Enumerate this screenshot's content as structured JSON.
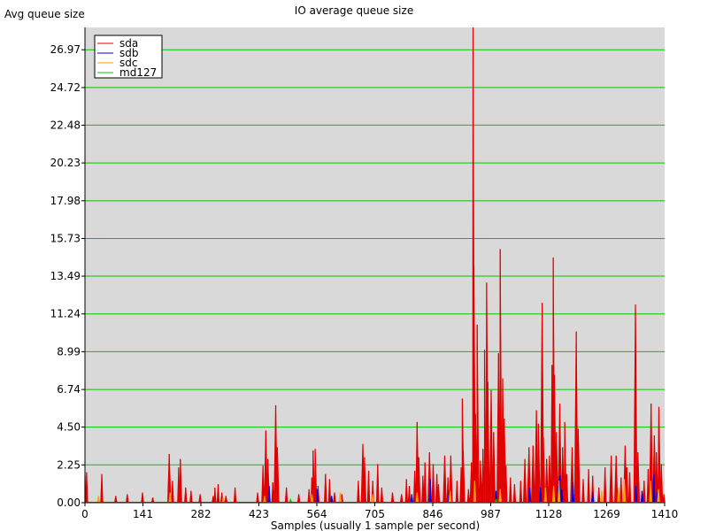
{
  "chart_data": {
    "type": "line",
    "title": "IO average queue size",
    "ylabel": "Avg queue size",
    "xlabel": "Samples (usually 1 sample per second)",
    "xlim": [
      0,
      1410
    ],
    "ylim": [
      0,
      28.3
    ],
    "x_ticks": [
      "0",
      "141",
      "282",
      "423",
      "564",
      "705",
      "846",
      "987",
      "1128",
      "1269",
      "1410"
    ],
    "y_ticks": [
      "0.00",
      "2.25",
      "4.50",
      "6.74",
      "8.99",
      "11.24",
      "13.49",
      "15.73",
      "17.98",
      "20.23",
      "22.48",
      "24.72",
      "26.97"
    ],
    "grid": "horizontal",
    "grid_color": "#00c800",
    "plot_background": "#d9d9d9",
    "legend_position": "top-left",
    "series": [
      {
        "name": "sda",
        "color": "#e00000",
        "spikes": [
          [
            0,
            1.6
          ],
          [
            4,
            1.8
          ],
          [
            41,
            1.7
          ],
          [
            75,
            0.4
          ],
          [
            103,
            0.5
          ],
          [
            140,
            0.6
          ],
          [
            165,
            0.3
          ],
          [
            205,
            2.9
          ],
          [
            213,
            1.3
          ],
          [
            228,
            2.1
          ],
          [
            232,
            2.6
          ],
          [
            245,
            0.9
          ],
          [
            258,
            0.7
          ],
          [
            280,
            0.5
          ],
          [
            312,
            0.4
          ],
          [
            316,
            0.9
          ],
          [
            324,
            1.1
          ],
          [
            333,
            0.6
          ],
          [
            343,
            0.4
          ],
          [
            365,
            0.9
          ],
          [
            420,
            0.6
          ],
          [
            433,
            2.2
          ],
          [
            440,
            4.3
          ],
          [
            445,
            2.6
          ],
          [
            457,
            1.2
          ],
          [
            464,
            5.8
          ],
          [
            468,
            3.3
          ],
          [
            490,
            0.9
          ],
          [
            520,
            0.5
          ],
          [
            545,
            0.8
          ],
          [
            552,
            1.5
          ],
          [
            555,
            3.1
          ],
          [
            560,
            3.2
          ],
          [
            567,
            1.0
          ],
          [
            585,
            1.7
          ],
          [
            595,
            1.4
          ],
          [
            607,
            0.6
          ],
          [
            625,
            0.5
          ],
          [
            665,
            1.3
          ],
          [
            676,
            3.5
          ],
          [
            680,
            2.7
          ],
          [
            690,
            1.9
          ],
          [
            700,
            1.3
          ],
          [
            712,
            2.3
          ],
          [
            722,
            0.9
          ],
          [
            748,
            0.6
          ],
          [
            770,
            0.5
          ],
          [
            782,
            1.4
          ],
          [
            789,
            1.0
          ],
          [
            802,
            1.9
          ],
          [
            808,
            4.8
          ],
          [
            812,
            2.7
          ],
          [
            822,
            1.6
          ],
          [
            827,
            2.4
          ],
          [
            838,
            3.0
          ],
          [
            847,
            2.3
          ],
          [
            856,
            1.7
          ],
          [
            860,
            1.1
          ],
          [
            875,
            2.8
          ],
          [
            883,
            1.5
          ],
          [
            890,
            2.8
          ],
          [
            905,
            1.3
          ],
          [
            915,
            2.1
          ],
          [
            918,
            6.2
          ],
          [
            920,
            3.1
          ],
          [
            933,
            0.8
          ],
          [
            940,
            2.4
          ],
          [
            944,
            28.3
          ],
          [
            946,
            14.1
          ],
          [
            950,
            5.3
          ],
          [
            954,
            10.6
          ],
          [
            962,
            2.5
          ],
          [
            968,
            3.2
          ],
          [
            972,
            9.1
          ],
          [
            977,
            13.1
          ],
          [
            980,
            7.2
          ],
          [
            988,
            6.7
          ],
          [
            994,
            4.2
          ],
          [
            1006,
            8.9
          ],
          [
            1010,
            15.1
          ],
          [
            1016,
            7.4
          ],
          [
            1020,
            5.0
          ],
          [
            1024,
            2.2
          ],
          [
            1035,
            1.5
          ],
          [
            1045,
            1.1
          ],
          [
            1060,
            1.3
          ],
          [
            1070,
            2.6
          ],
          [
            1080,
            3.3
          ],
          [
            1090,
            3.4
          ],
          [
            1098,
            5.5
          ],
          [
            1103,
            4.7
          ],
          [
            1112,
            11.9
          ],
          [
            1115,
            3.9
          ],
          [
            1123,
            2.6
          ],
          [
            1130,
            2.8
          ],
          [
            1136,
            8.2
          ],
          [
            1139,
            14.6
          ],
          [
            1142,
            7.6
          ],
          [
            1147,
            4.2
          ],
          [
            1155,
            5.9
          ],
          [
            1162,
            3.3
          ],
          [
            1167,
            4.8
          ],
          [
            1172,
            1.7
          ],
          [
            1185,
            3.3
          ],
          [
            1195,
            10.2
          ],
          [
            1200,
            4.4
          ],
          [
            1212,
            1.4
          ],
          [
            1225,
            2.0
          ],
          [
            1235,
            1.6
          ],
          [
            1250,
            0.9
          ],
          [
            1265,
            2.1
          ],
          [
            1280,
            2.8
          ],
          [
            1292,
            2.8
          ],
          [
            1304,
            1.5
          ],
          [
            1314,
            3.4
          ],
          [
            1318,
            2.1
          ],
          [
            1325,
            1.8
          ],
          [
            1339,
            11.8
          ],
          [
            1345,
            3.0
          ],
          [
            1360,
            1.3
          ],
          [
            1370,
            2.0
          ],
          [
            1377,
            5.9
          ],
          [
            1385,
            4.0
          ],
          [
            1390,
            3.0
          ],
          [
            1396,
            5.7
          ],
          [
            1402,
            2.3
          ],
          [
            1408,
            0.5
          ]
        ]
      },
      {
        "name": "sdb",
        "color": "#0000e0",
        "spikes": [
          [
            448,
            1.0
          ],
          [
            565,
            0.8
          ],
          [
            600,
            0.4
          ],
          [
            795,
            0.5
          ],
          [
            840,
            1.4
          ],
          [
            886,
            0.7
          ],
          [
            1000,
            0.7
          ],
          [
            1082,
            0.9
          ],
          [
            1108,
            0.9
          ],
          [
            1150,
            1.0
          ],
          [
            1155,
            1.6
          ],
          [
            1160,
            0.8
          ],
          [
            1187,
            1.2
          ],
          [
            1235,
            0.6
          ],
          [
            1340,
            1.0
          ],
          [
            1355,
            0.7
          ],
          [
            1384,
            1.7
          ],
          [
            1392,
            0.6
          ]
        ]
      },
      {
        "name": "sdc",
        "color": "#ffa000",
        "spikes": [
          [
            33,
            0.4
          ],
          [
            207,
            0.6
          ],
          [
            336,
            0.3
          ],
          [
            437,
            0.4
          ],
          [
            552,
            0.5
          ],
          [
            621,
            0.6
          ],
          [
            700,
            0.5
          ],
          [
            808,
            0.6
          ],
          [
            888,
            0.7
          ],
          [
            948,
            1.3
          ],
          [
            1010,
            0.8
          ],
          [
            1120,
            0.9
          ],
          [
            1140,
            1.0
          ],
          [
            1153,
            1.3
          ],
          [
            1257,
            0.7
          ],
          [
            1298,
            0.9
          ],
          [
            1312,
            1.4
          ],
          [
            1376,
            1.3
          ],
          [
            1395,
            0.8
          ]
        ]
      },
      {
        "name": "md127",
        "color": "#00c800",
        "spikes": [
          [
            500,
            0.2
          ],
          [
            1000,
            0.2
          ]
        ]
      }
    ]
  }
}
